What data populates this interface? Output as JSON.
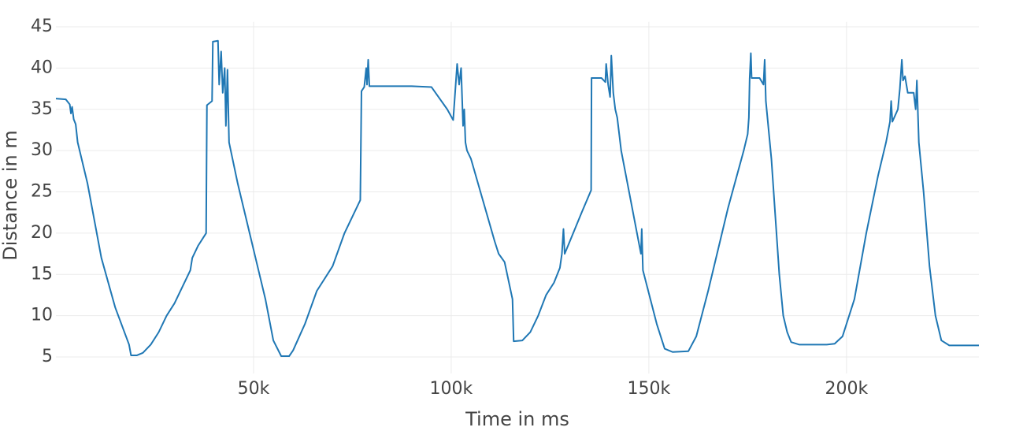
{
  "chart_data": {
    "type": "line",
    "x_label": "Time in ms",
    "y_label": "Distance in m",
    "xlim": [
      0,
      233500
    ],
    "ylim": [
      3,
      45.6
    ],
    "xticks": [
      {
        "value": 50000,
        "label": "50k"
      },
      {
        "value": 100000,
        "label": "100k"
      },
      {
        "value": 150000,
        "label": "150k"
      },
      {
        "value": 200000,
        "label": "200k"
      }
    ],
    "yticks": [
      5,
      10,
      15,
      20,
      25,
      30,
      35,
      40,
      45
    ],
    "grid": true,
    "series": [
      {
        "color": "#1f77b4",
        "x": [
          0,
          2500,
          3500,
          3800,
          4100,
          4500,
          5000,
          5500,
          8000,
          11500,
          15000,
          18500,
          19000,
          20500,
          22000,
          24000,
          26000,
          28000,
          30000,
          34000,
          34500,
          36000,
          38000,
          38200,
          39500,
          39700,
          41000,
          41300,
          41800,
          42200,
          42700,
          43000,
          43400,
          43800,
          46000,
          49000,
          51000,
          53000,
          55000,
          57000,
          59000,
          60000,
          63000,
          66000,
          70000,
          73000,
          77000,
          77300,
          78000,
          78500,
          78700,
          79000,
          79300,
          85000,
          90000,
          95000,
          99000,
          100500,
          101500,
          102000,
          102500,
          103000,
          103300,
          103600,
          104000,
          105000,
          108000,
          111000,
          112000,
          113500,
          115500,
          115800,
          118000,
          120000,
          122000,
          124000,
          126000,
          127500,
          128000,
          128400,
          128700,
          130000,
          133000,
          135400,
          135500,
          138000,
          139000,
          139200,
          139700,
          140200,
          140500,
          141000,
          141500,
          142000,
          143000,
          147000,
          148000,
          148200,
          148500,
          152000,
          154000,
          156000,
          160000,
          162000,
          165000,
          167000,
          170000,
          174000,
          175000,
          175300,
          175500,
          175800,
          176000,
          178000,
          179000,
          179300,
          179600,
          180000,
          181000,
          182000,
          183000,
          184000,
          185000,
          186000,
          188000,
          195000,
          197000,
          199000,
          202000,
          205000,
          208000,
          210000,
          211000,
          211300,
          211600,
          213000,
          213500,
          214000,
          214300,
          214800,
          215500,
          217000,
          217500,
          217800,
          218300,
          219500,
          221000,
          222500,
          224000,
          226000,
          233500
        ],
        "values": [
          36.3,
          36.2,
          35.6,
          34.5,
          35.3,
          33.8,
          33.2,
          31,
          26,
          17,
          11,
          6.5,
          5.2,
          5.2,
          5.5,
          6.5,
          8,
          10,
          11.5,
          15.5,
          17,
          18.5,
          20,
          35.5,
          36,
          43.2,
          43.3,
          38,
          42,
          37,
          40,
          33,
          39.8,
          31,
          26,
          20,
          16,
          12,
          7,
          5.1,
          5.1,
          5.8,
          9,
          13,
          16,
          20,
          24,
          37.2,
          37.7,
          40,
          38,
          41,
          37.8,
          37.8,
          37.8,
          37.7,
          35,
          33.7,
          40.5,
          38,
          40,
          33,
          35,
          31,
          30,
          29,
          24,
          19,
          17.5,
          16.5,
          12,
          6.9,
          7,
          8,
          10,
          12.5,
          14,
          15.8,
          17.5,
          20.5,
          17.5,
          19,
          22.5,
          25.2,
          38.8,
          38.8,
          38.3,
          40.5,
          38,
          36.5,
          41.5,
          37,
          35,
          34,
          30,
          20,
          17.5,
          20.5,
          15.5,
          9,
          6,
          5.6,
          5.7,
          7.5,
          13,
          17,
          23,
          30,
          32,
          34,
          38.7,
          41.8,
          38.8,
          38.8,
          38,
          41,
          36,
          34,
          29,
          22,
          15,
          10,
          8,
          6.8,
          6.5,
          6.5,
          6.6,
          7.5,
          12,
          20,
          27,
          31,
          33.5,
          36,
          33.5,
          35,
          37.5,
          41,
          38.5,
          39,
          37,
          37,
          35,
          38.5,
          31,
          25,
          16,
          10,
          7,
          6.4,
          6.4
        ]
      }
    ]
  }
}
